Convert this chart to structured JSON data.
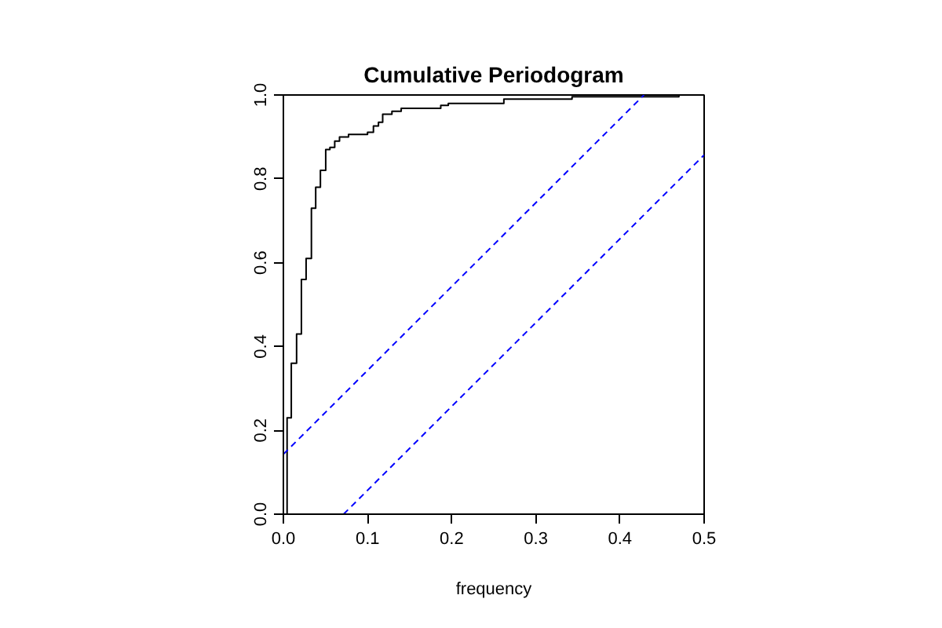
{
  "chart_data": {
    "type": "step",
    "title": "Cumulative Periodogram",
    "xlabel": "frequency",
    "xlim": [
      0,
      0.5
    ],
    "ylim": [
      0,
      1
    ],
    "xticks": [
      {
        "value": 0,
        "label": "0.0"
      },
      0.1,
      0.2,
      0.3,
      0.4,
      0.5
    ],
    "yticks": [
      {
        "value": 0,
        "label": "0.0"
      },
      0.2,
      0.4,
      0.6,
      0.8,
      {
        "value": 1,
        "label": "1.0"
      }
    ],
    "grid": false,
    "marker": "none",
    "series": [
      {
        "color": "#000000",
        "line_style": "solid",
        "x": [
          0.0044,
          0.0044,
          0.0094,
          0.0157,
          0.0214,
          0.027,
          0.0333,
          0.0384,
          0.044,
          0.0503,
          0.0553,
          0.061,
          0.0667,
          0.0774,
          0.1,
          0.107,
          0.113,
          0.118,
          0.129,
          0.14,
          0.187,
          0.196,
          0.262,
          0.343,
          0.47,
          0.5
        ],
        "values": [
          0,
          0.23,
          0.36,
          0.43,
          0.56,
          0.61,
          0.73,
          0.78,
          0.82,
          0.87,
          0.875,
          0.89,
          0.9,
          0.906,
          0.911,
          0.926,
          0.935,
          0.954,
          0.961,
          0.968,
          0.975,
          0.98,
          0.99,
          0.996,
          1,
          1
        ]
      },
      {
        "type": "line",
        "color": "#0000ff",
        "line_style": "dashed",
        "x": [
          0,
          0.4285
        ],
        "values": [
          0.143,
          1
        ]
      },
      {
        "type": "line",
        "color": "#0000ff",
        "line_style": "dashed",
        "x": [
          0.0715,
          0.5
        ],
        "values": [
          0,
          0.857
        ]
      }
    ]
  }
}
